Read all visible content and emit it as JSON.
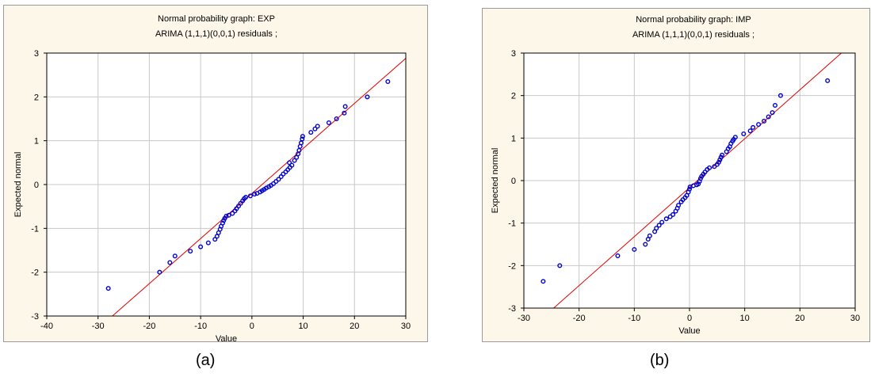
{
  "panels": [
    {
      "caption": "(a)",
      "title_line1": "Normal probability graph:   EXP",
      "title_line2": "ARIMA (1,1,1)(0,0,1) residuals  ;"
    },
    {
      "caption": "(b)",
      "title_line1": "Normal probability graph:   IMP",
      "title_line2": "ARIMA (1,1,1)(0,0,1) residuals  ;"
    }
  ],
  "colors": {
    "points": "#0000cc",
    "fit_line": "#e00000",
    "grid": "#c8c8c8",
    "background": "#fdf7ea"
  },
  "chart_data": [
    {
      "type": "scatter",
      "title": "Normal probability graph:   EXP",
      "subtitle": "ARIMA (1,1,1)(0,0,1) residuals  ;",
      "xlabel": "Value",
      "ylabel": "Expected normal",
      "xlim": [
        -40,
        30
      ],
      "ylim": [
        -3,
        3
      ],
      "xticks": [
        -40,
        -30,
        -20,
        -10,
        0,
        10,
        20,
        30
      ],
      "yticks": [
        -3,
        -2,
        -1,
        0,
        1,
        2,
        3
      ],
      "grid": true,
      "fit_line": {
        "x": [
          -27.2,
          30
        ],
        "y": [
          -3,
          2.88
        ]
      },
      "points": [
        [
          -28.0,
          -2.37
        ],
        [
          -18.0,
          -2.0
        ],
        [
          -16.0,
          -1.78
        ],
        [
          -15.0,
          -1.63
        ],
        [
          -12.0,
          -1.52
        ],
        [
          -10.0,
          -1.42
        ],
        [
          -8.5,
          -1.33
        ],
        [
          -7.2,
          -1.25
        ],
        [
          -6.8,
          -1.18
        ],
        [
          -6.5,
          -1.1
        ],
        [
          -6.2,
          -1.02
        ],
        [
          -6.0,
          -0.95
        ],
        [
          -5.7,
          -0.88
        ],
        [
          -5.5,
          -0.82
        ],
        [
          -5.3,
          -0.77
        ],
        [
          -5.0,
          -0.72
        ],
        [
          -4.5,
          -0.7
        ],
        [
          -3.8,
          -0.66
        ],
        [
          -3.3,
          -0.6
        ],
        [
          -3.0,
          -0.55
        ],
        [
          -2.6,
          -0.49
        ],
        [
          -2.2,
          -0.43
        ],
        [
          -1.8,
          -0.37
        ],
        [
          -1.5,
          -0.32
        ],
        [
          -1.2,
          -0.29
        ],
        [
          -0.3,
          -0.26
        ],
        [
          0.5,
          -0.22
        ],
        [
          1.0,
          -0.2
        ],
        [
          1.6,
          -0.17
        ],
        [
          2.0,
          -0.14
        ],
        [
          2.4,
          -0.11
        ],
        [
          2.8,
          -0.08
        ],
        [
          3.3,
          -0.05
        ],
        [
          3.7,
          -0.02
        ],
        [
          4.2,
          0.02
        ],
        [
          4.7,
          0.07
        ],
        [
          5.2,
          0.12
        ],
        [
          5.7,
          0.18
        ],
        [
          6.1,
          0.24
        ],
        [
          6.6,
          0.29
        ],
        [
          7.0,
          0.34
        ],
        [
          7.4,
          0.39
        ],
        [
          7.8,
          0.44
        ],
        [
          7.3,
          0.5
        ],
        [
          8.3,
          0.55
        ],
        [
          8.7,
          0.62
        ],
        [
          9.0,
          0.7
        ],
        [
          9.2,
          0.78
        ],
        [
          9.4,
          0.87
        ],
        [
          9.6,
          0.95
        ],
        [
          9.8,
          1.04
        ],
        [
          9.9,
          1.1
        ],
        [
          11.5,
          1.19
        ],
        [
          12.3,
          1.27
        ],
        [
          12.8,
          1.33
        ],
        [
          15.0,
          1.41
        ],
        [
          16.5,
          1.5
        ],
        [
          18.0,
          1.63
        ],
        [
          18.2,
          1.78
        ],
        [
          22.5,
          2.0
        ],
        [
          26.5,
          2.35
        ]
      ]
    },
    {
      "type": "scatter",
      "title": "Normal probability graph:   IMP",
      "subtitle": "ARIMA (1,1,1)(0,0,1) residuals  ;",
      "xlabel": "Value",
      "ylabel": "Expected normal",
      "xlim": [
        -30,
        30
      ],
      "ylim": [
        -3,
        3
      ],
      "xticks": [
        -30,
        -20,
        -10,
        0,
        10,
        20,
        30
      ],
      "yticks": [
        -3,
        -2,
        -1,
        0,
        1,
        2,
        3
      ],
      "grid": true,
      "fit_line": {
        "x": [
          -24.6,
          27.5
        ],
        "y": [
          -3,
          3
        ]
      },
      "points": [
        [
          -26.5,
          -2.37
        ],
        [
          -23.5,
          -2.0
        ],
        [
          -13.0,
          -1.77
        ],
        [
          -10.0,
          -1.62
        ],
        [
          -8.0,
          -1.5
        ],
        [
          -7.5,
          -1.38
        ],
        [
          -7.2,
          -1.3
        ],
        [
          -6.3,
          -1.2
        ],
        [
          -6.0,
          -1.12
        ],
        [
          -5.5,
          -1.05
        ],
        [
          -5.0,
          -0.98
        ],
        [
          -4.2,
          -0.9
        ],
        [
          -3.5,
          -0.85
        ],
        [
          -3.0,
          -0.8
        ],
        [
          -2.5,
          -0.72
        ],
        [
          -2.2,
          -0.65
        ],
        [
          -2.0,
          -0.58
        ],
        [
          -1.5,
          -0.5
        ],
        [
          -1.2,
          -0.45
        ],
        [
          -0.8,
          -0.4
        ],
        [
          -0.5,
          -0.35
        ],
        [
          -0.2,
          -0.27
        ],
        [
          0.0,
          -0.2
        ],
        [
          0.1,
          -0.15
        ],
        [
          0.7,
          -0.12
        ],
        [
          1.3,
          -0.1
        ],
        [
          1.6,
          -0.08
        ],
        [
          1.8,
          -0.02
        ],
        [
          2.0,
          0.05
        ],
        [
          2.2,
          0.1
        ],
        [
          2.5,
          0.15
        ],
        [
          2.8,
          0.2
        ],
        [
          3.2,
          0.26
        ],
        [
          3.6,
          0.3
        ],
        [
          4.5,
          0.33
        ],
        [
          5.0,
          0.38
        ],
        [
          5.3,
          0.43
        ],
        [
          5.5,
          0.49
        ],
        [
          5.7,
          0.55
        ],
        [
          5.9,
          0.6
        ],
        [
          6.7,
          0.68
        ],
        [
          7.0,
          0.75
        ],
        [
          7.3,
          0.8
        ],
        [
          7.5,
          0.87
        ],
        [
          7.8,
          0.93
        ],
        [
          8.0,
          0.97
        ],
        [
          8.3,
          1.02
        ],
        [
          9.8,
          1.1
        ],
        [
          11.0,
          1.17
        ],
        [
          11.5,
          1.25
        ],
        [
          12.5,
          1.32
        ],
        [
          13.5,
          1.4
        ],
        [
          14.3,
          1.5
        ],
        [
          15.0,
          1.6
        ],
        [
          15.5,
          1.77
        ],
        [
          16.5,
          2.0
        ],
        [
          25.0,
          2.35
        ]
      ]
    }
  ]
}
